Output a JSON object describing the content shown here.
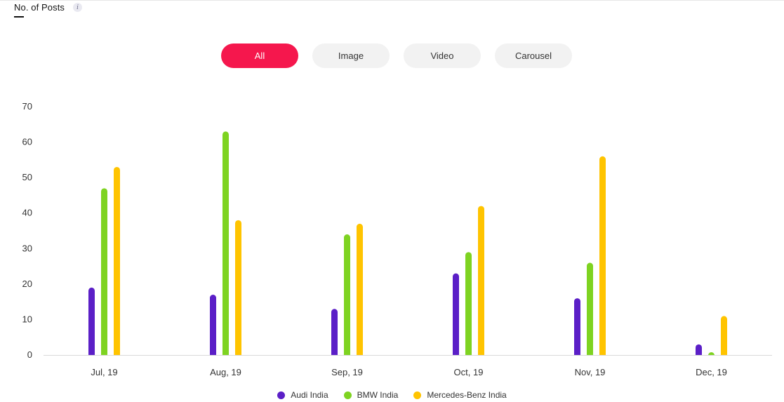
{
  "header": {
    "title": "No. of Posts",
    "info_glyph": "i"
  },
  "tabs": [
    {
      "label": "All",
      "active": true
    },
    {
      "label": "Image",
      "active": false
    },
    {
      "label": "Video",
      "active": false
    },
    {
      "label": "Carousel",
      "active": false
    }
  ],
  "chart_data": {
    "type": "bar",
    "categories": [
      "Jul, 19",
      "Aug, 19",
      "Sep, 19",
      "Oct, 19",
      "Nov, 19",
      "Dec, 19"
    ],
    "series": [
      {
        "name": "Audi India",
        "color": "#5b1fc7",
        "values": [
          19,
          17,
          13,
          23,
          16,
          3
        ]
      },
      {
        "name": "BMW India",
        "color": "#7ed321",
        "values": [
          47,
          63,
          34,
          29,
          26,
          0
        ]
      },
      {
        "name": "Mercedes-Benz India",
        "color": "#ffc400",
        "values": [
          53,
          38,
          37,
          42,
          56,
          11
        ]
      }
    ],
    "y_ticks": [
      0,
      10,
      20,
      30,
      40,
      50,
      60,
      70
    ],
    "ylim": [
      0,
      70
    ],
    "grid": false,
    "legend_position": "bottom-center"
  }
}
